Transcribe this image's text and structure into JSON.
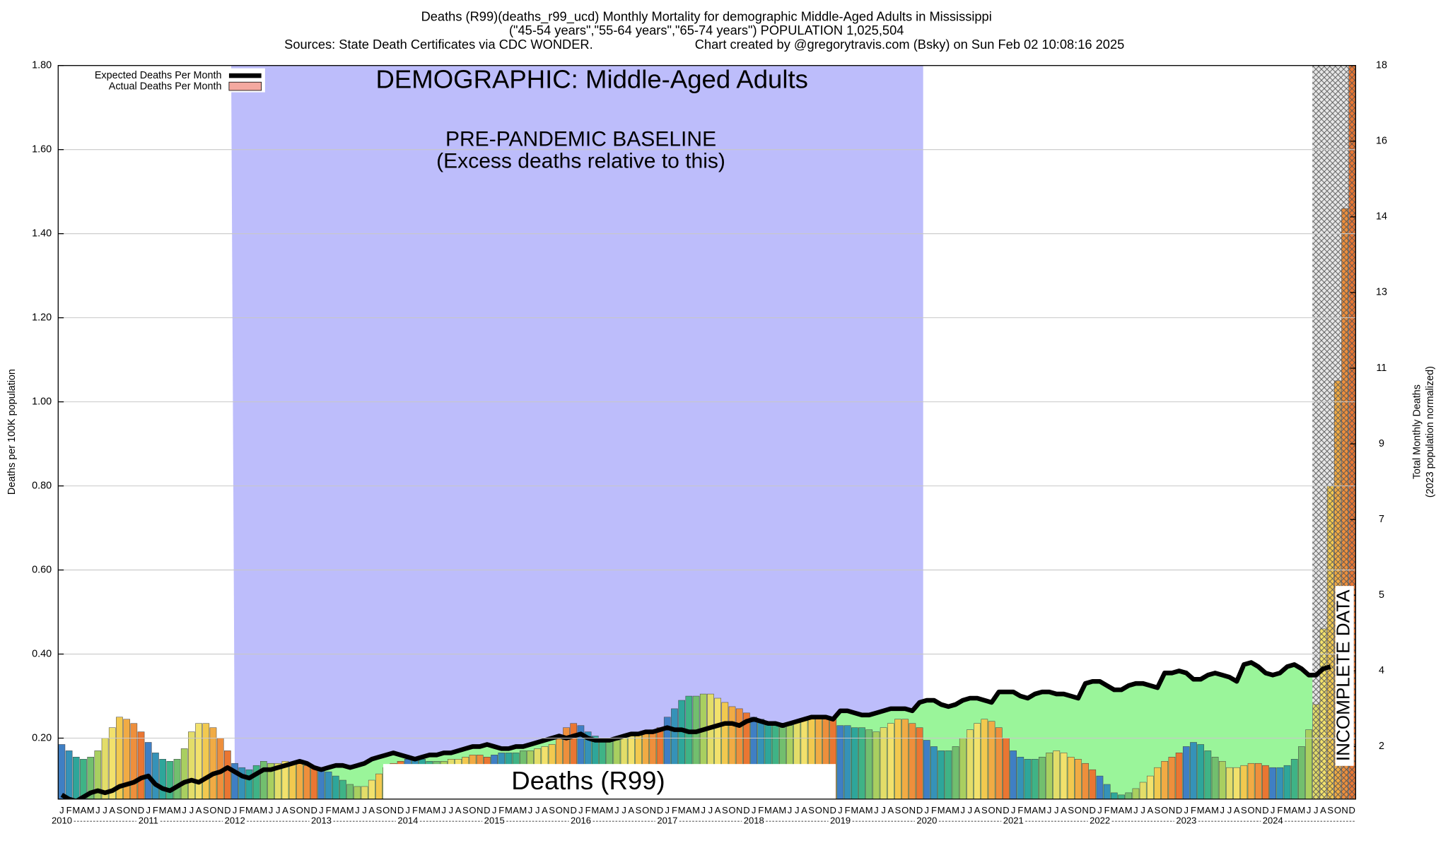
{
  "chart_data": {
    "type": "bar",
    "title": "Deaths (R99)(deaths_r99_ucd) Monthly Mortality for demographic Middle-Aged Adults in Mississippi",
    "subtitle": "(\"45-54 years\",\"55-64 years\",\"65-74 years\") POPULATION 1,025,504",
    "sources": "Sources: State Death Certificates via CDC WONDER.",
    "credit": "Chart created by @gregorytravis.com (Bsky) on Sun Feb 02 10:08:16 2025",
    "y_label": "Deaths per 100K population",
    "y2_label": [
      "Total Monthly Deaths",
      "(2023 population normalized)"
    ],
    "annotations": {
      "demographic": "DEMOGRAPHIC: Middle-Aged Adults",
      "baseline": "PRE-PANDEMIC BASELINE",
      "baseline_note": "(Excess deaths relative to this)",
      "center_label": "Deaths (R99)",
      "incomplete": "INCOMPLETE DATA"
    },
    "years": [
      "2010",
      "2011",
      "2012",
      "2013",
      "2014",
      "2015",
      "2016",
      "2017",
      "2018",
      "2019",
      "2020",
      "2021",
      "2022",
      "2023",
      "2024"
    ],
    "categories": [
      "J",
      "F",
      "M",
      "A",
      "M",
      "J",
      "J",
      "A",
      "S",
      "O",
      "N",
      "D",
      "J",
      "F",
      "M",
      "A",
      "M",
      "J",
      "J",
      "A",
      "S",
      "O",
      "N",
      "D",
      "J",
      "F",
      "M",
      "A",
      "M",
      "J",
      "J",
      "A",
      "S",
      "O",
      "N",
      "D",
      "J",
      "F",
      "M",
      "A",
      "M",
      "J",
      "J",
      "A",
      "S",
      "O",
      "N",
      "D",
      "J",
      "F",
      "M",
      "A",
      "M",
      "J",
      "J",
      "A",
      "S",
      "O",
      "N",
      "D",
      "J",
      "F",
      "M",
      "A",
      "M",
      "J",
      "J",
      "A",
      "S",
      "O",
      "N",
      "D",
      "J",
      "F",
      "M",
      "A",
      "M",
      "J",
      "J",
      "A",
      "S",
      "O",
      "N",
      "D",
      "J",
      "F",
      "M",
      "A",
      "M",
      "J",
      "J",
      "A",
      "S",
      "O",
      "N",
      "D",
      "J",
      "F",
      "M",
      "A",
      "M",
      "J",
      "J",
      "A",
      "S",
      "O",
      "N",
      "D",
      "J",
      "F",
      "M",
      "A",
      "M",
      "J",
      "J",
      "A",
      "S",
      "O",
      "N",
      "D",
      "J",
      "F",
      "M",
      "A",
      "M",
      "J",
      "J",
      "A",
      "S",
      "O",
      "N",
      "D",
      "J",
      "F",
      "M",
      "A",
      "M",
      "J",
      "J",
      "A",
      "S",
      "O",
      "N",
      "D",
      "J",
      "F",
      "M",
      "A",
      "M",
      "J",
      "J",
      "A",
      "S",
      "O",
      "N",
      "D",
      "J",
      "F",
      "M",
      "A",
      "M",
      "J",
      "J",
      "A",
      "S",
      "O",
      "N",
      "D",
      "J",
      "F",
      "M",
      "A",
      "M",
      "J",
      "J",
      "A",
      "S",
      "O",
      "N",
      "D"
    ],
    "series": [
      {
        "name": "Expected Deaths Per Month",
        "color": "#000000",
        "values": [
          0.065,
          0.055,
          0.05,
          0.06,
          0.07,
          0.075,
          0.07,
          0.075,
          0.085,
          0.09,
          0.095,
          0.105,
          0.11,
          0.09,
          0.08,
          0.075,
          0.085,
          0.095,
          0.1,
          0.095,
          0.105,
          0.115,
          0.12,
          0.13,
          0.12,
          0.11,
          0.105,
          0.115,
          0.125,
          0.125,
          0.13,
          0.135,
          0.14,
          0.145,
          0.14,
          0.13,
          0.125,
          0.13,
          0.135,
          0.135,
          0.13,
          0.135,
          0.14,
          0.15,
          0.155,
          0.16,
          0.165,
          0.16,
          0.155,
          0.15,
          0.155,
          0.16,
          0.16,
          0.165,
          0.165,
          0.17,
          0.175,
          0.18,
          0.18,
          0.185,
          0.18,
          0.175,
          0.175,
          0.18,
          0.18,
          0.185,
          0.19,
          0.195,
          0.2,
          0.205,
          0.2,
          0.205,
          0.21,
          0.2,
          0.195,
          0.195,
          0.195,
          0.2,
          0.205,
          0.21,
          0.21,
          0.215,
          0.215,
          0.22,
          0.225,
          0.22,
          0.22,
          0.215,
          0.215,
          0.22,
          0.225,
          0.23,
          0.235,
          0.235,
          0.23,
          0.24,
          0.245,
          0.24,
          0.235,
          0.235,
          0.23,
          0.235,
          0.24,
          0.245,
          0.25,
          0.25,
          0.25,
          0.245,
          0.265,
          0.265,
          0.26,
          0.255,
          0.255,
          0.26,
          0.265,
          0.27,
          0.27,
          0.27,
          0.265,
          0.285,
          0.29,
          0.29,
          0.28,
          0.275,
          0.28,
          0.29,
          0.295,
          0.295,
          0.29,
          0.285,
          0.31,
          0.31,
          0.31,
          0.3,
          0.295,
          0.305,
          0.31,
          0.31,
          0.305,
          0.305,
          0.3,
          0.295,
          0.33,
          0.335,
          0.335,
          0.325,
          0.315,
          0.315,
          0.325,
          0.33,
          0.33,
          0.325,
          0.32,
          0.355,
          0.355,
          0.36,
          0.355,
          0.34,
          0.34,
          0.35,
          0.355,
          0.35,
          0.345,
          0.335,
          0.375,
          0.38,
          0.37,
          0.355,
          0.35,
          0.355,
          0.37,
          0.375,
          0.365,
          0.35,
          0.35,
          0.365,
          0.37,
          null,
          null,
          null
        ]
      },
      {
        "name": "Actual Deaths Per Month",
        "color": "#f4a9a0",
        "values": [
          0.185,
          0.17,
          0.155,
          0.15,
          0.155,
          0.17,
          0.2,
          0.225,
          0.25,
          0.245,
          0.235,
          0.215,
          0.19,
          0.165,
          0.15,
          0.145,
          0.15,
          0.175,
          0.215,
          0.235,
          0.235,
          0.225,
          0.2,
          0.17,
          0.14,
          0.13,
          0.125,
          0.135,
          0.145,
          0.14,
          0.14,
          0.145,
          0.14,
          0.14,
          0.135,
          0.13,
          0.125,
          0.12,
          0.11,
          0.1,
          0.09,
          0.085,
          0.085,
          0.1,
          0.115,
          0.13,
          0.14,
          0.145,
          0.15,
          0.15,
          0.15,
          0.145,
          0.145,
          0.145,
          0.15,
          0.15,
          0.155,
          0.16,
          0.16,
          0.155,
          0.16,
          0.165,
          0.165,
          0.165,
          0.17,
          0.17,
          0.175,
          0.18,
          0.185,
          0.2,
          0.225,
          0.235,
          0.23,
          0.215,
          0.205,
          0.2,
          0.195,
          0.195,
          0.2,
          0.205,
          0.21,
          0.215,
          0.22,
          0.225,
          0.25,
          0.27,
          0.29,
          0.3,
          0.3,
          0.305,
          0.305,
          0.295,
          0.285,
          0.275,
          0.27,
          0.26,
          0.25,
          0.245,
          0.235,
          0.23,
          0.225,
          0.23,
          0.24,
          0.245,
          0.25,
          0.25,
          0.245,
          0.245,
          0.23,
          0.23,
          0.225,
          0.225,
          0.22,
          0.215,
          0.225,
          0.235,
          0.245,
          0.245,
          0.235,
          0.225,
          0.195,
          0.18,
          0.17,
          0.17,
          0.18,
          0.2,
          0.22,
          0.235,
          0.245,
          0.24,
          0.225,
          0.2,
          0.17,
          0.155,
          0.15,
          0.15,
          0.155,
          0.165,
          0.17,
          0.165,
          0.155,
          0.15,
          0.14,
          0.125,
          0.11,
          0.09,
          0.07,
          0.065,
          0.07,
          0.08,
          0.095,
          0.11,
          0.13,
          0.145,
          0.155,
          0.165,
          0.18,
          0.19,
          0.185,
          0.17,
          0.155,
          0.145,
          0.13,
          0.13,
          0.135,
          0.14,
          0.14,
          0.135,
          0.13,
          0.13,
          0.135,
          0.15,
          0.18,
          0.22,
          0.28,
          0.46,
          0.8,
          1.05,
          1.46,
          1.8
        ]
      }
    ],
    "bar_palette": [
      "#3f7fc4",
      "#3592b8",
      "#2ea69a",
      "#3fb386",
      "#72bf6e",
      "#a9cf60",
      "#e3dd69",
      "#f2e16c",
      "#f2c94f",
      "#f1ab44",
      "#ee8f3c",
      "#ea7632"
    ],
    "ylim": [
      0.055,
      1.8
    ],
    "yticks": [
      {
        "value": 0.2,
        "label": "0.20"
      },
      {
        "value": 0.4,
        "label": "0.40"
      },
      {
        "value": 0.6,
        "label": "0.60"
      },
      {
        "value": 0.8,
        "label": "0.80"
      },
      {
        "value": 1.0,
        "label": "1.00"
      },
      {
        "value": 1.2,
        "label": "1.20"
      },
      {
        "value": 1.4,
        "label": "1.40"
      },
      {
        "value": 1.6,
        "label": "1.60"
      },
      {
        "value": 1.8,
        "label": "1.80"
      }
    ],
    "y2lim": [
      0.55,
      18
    ],
    "y2ticks": [
      {
        "value": 1.8,
        "label": "2"
      },
      {
        "value": 3.6,
        "label": "4"
      },
      {
        "value": 5.4,
        "label": "5"
      },
      {
        "value": 7.2,
        "label": "7"
      },
      {
        "value": 9,
        "label": "9"
      },
      {
        "value": 10.8,
        "label": "11"
      },
      {
        "value": 12.6,
        "label": "13"
      },
      {
        "value": 14.4,
        "label": "14"
      },
      {
        "value": 16.2,
        "label": "16"
      },
      {
        "value": 18,
        "label": "18"
      }
    ],
    "grid": true
  }
}
